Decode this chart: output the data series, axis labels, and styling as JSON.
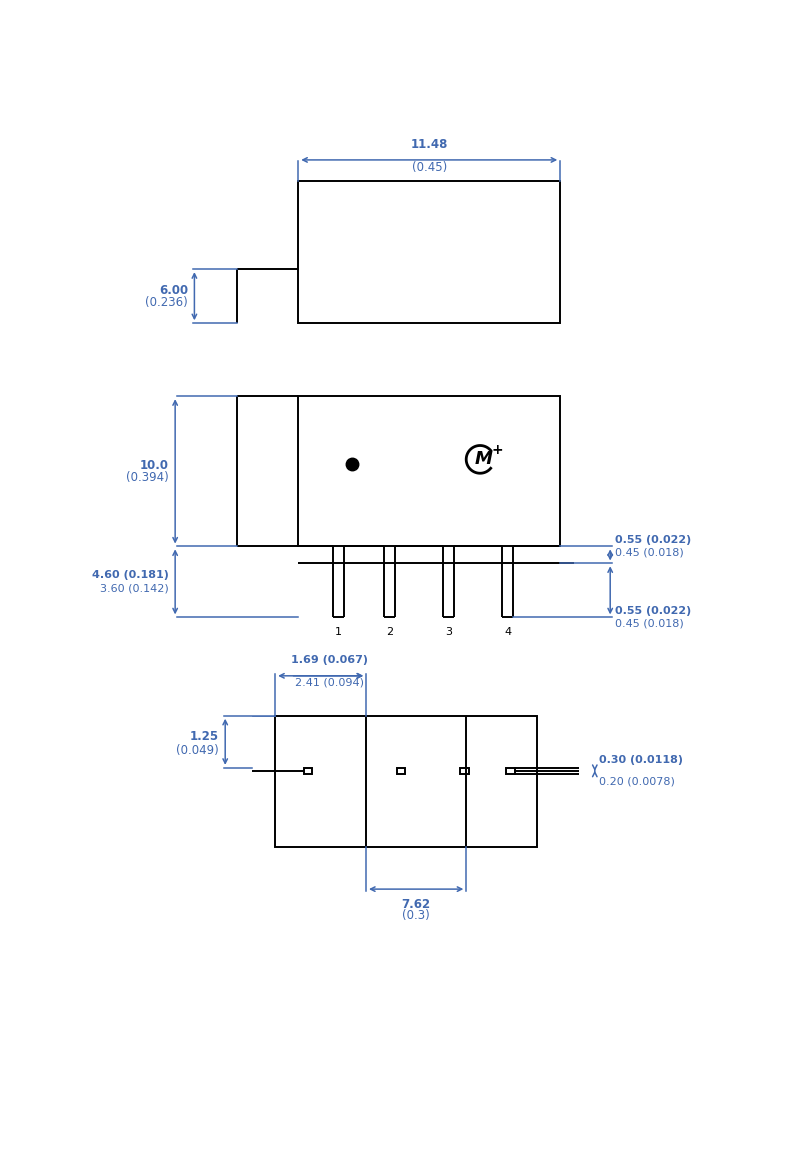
{
  "bg_color": "#ffffff",
  "line_color": "#000000",
  "dim_color": "#4169b0",
  "fig_width": 8.0,
  "fig_height": 11.53,
  "lw": 1.4,
  "dim_lw": 1.1,
  "font_size": 8.5,
  "font_size_sm": 8.0
}
